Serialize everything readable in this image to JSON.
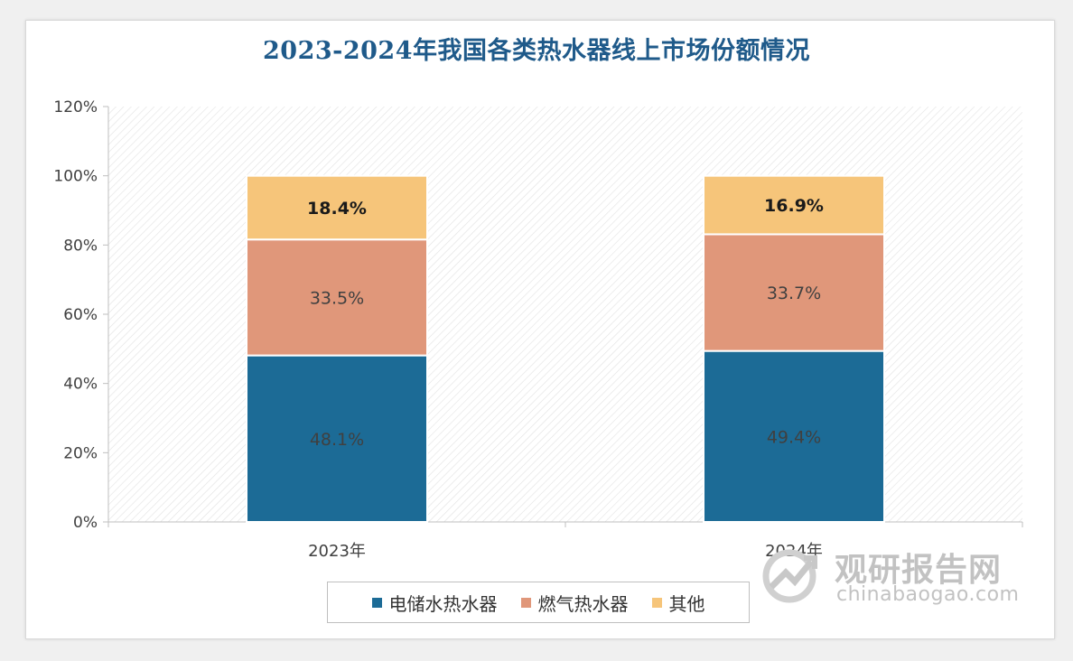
{
  "chart_data": {
    "type": "bar",
    "stacked": true,
    "title": "2023-2024年我国各类热水器线上市场份额情况",
    "categories": [
      "2023年",
      "2024年"
    ],
    "series": [
      {
        "name": "电储水热水器",
        "values": [
          48.1,
          49.4
        ],
        "labels": [
          "48.1%",
          "49.4%"
        ],
        "color": "#1c6b96"
      },
      {
        "name": "燃气热水器",
        "values": [
          33.5,
          33.7
        ],
        "labels": [
          "33.5%",
          "33.7%"
        ],
        "color": "#e0977a"
      },
      {
        "name": "其他",
        "values": [
          18.4,
          16.9
        ],
        "labels": [
          "18.4%",
          "16.9%"
        ],
        "color": "#f6c57a"
      }
    ],
    "ylim": [
      0,
      120
    ],
    "yticks": [
      "0%",
      "20%",
      "40%",
      "60%",
      "80%",
      "100%",
      "120%"
    ],
    "xlabel": "",
    "ylabel": "",
    "legend_position": "bottom"
  },
  "watermark": {
    "brand_cn": "观研报告网",
    "brand_en": "chinabaogao.com"
  }
}
